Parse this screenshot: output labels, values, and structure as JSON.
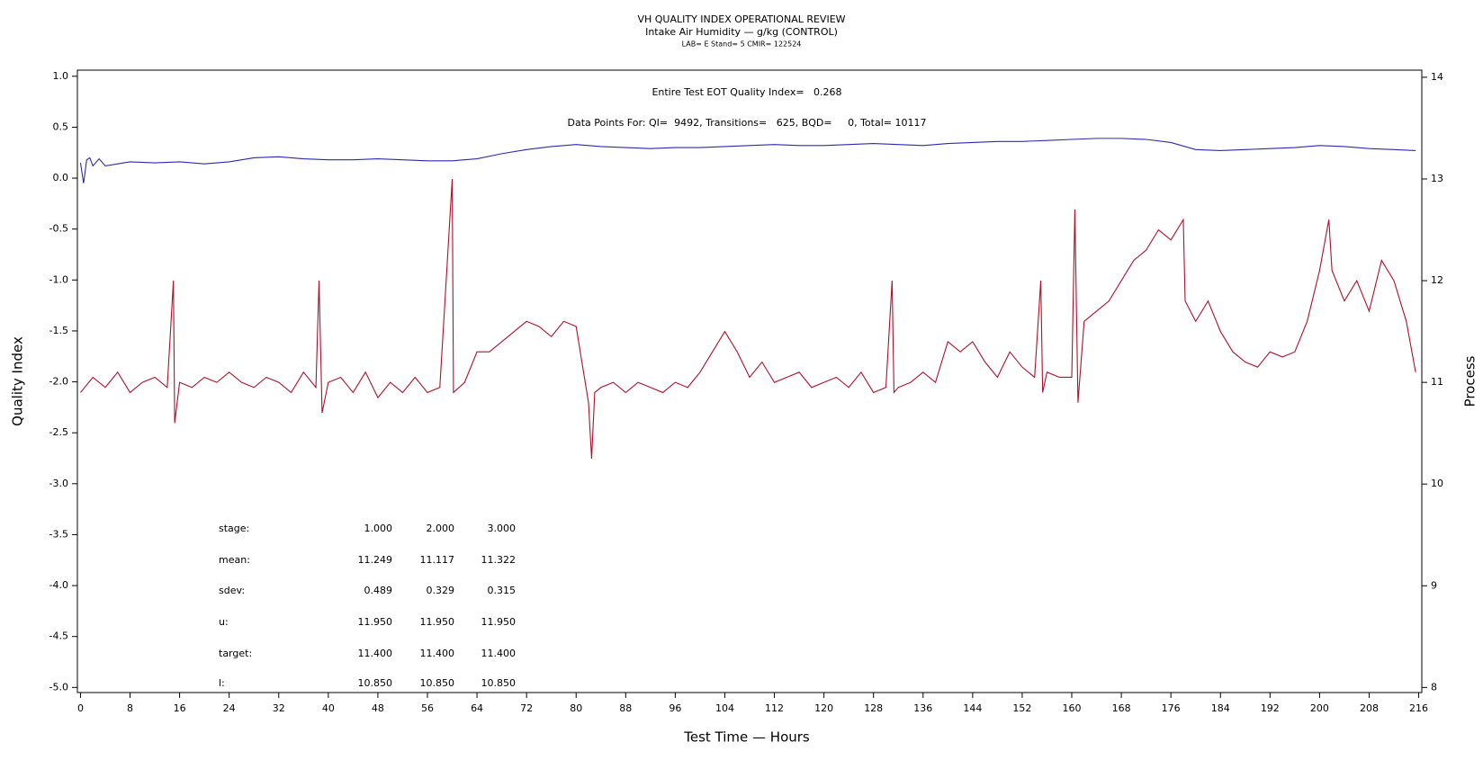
{
  "chart_data": {
    "type": "line",
    "title": "VH QUALITY INDEX OPERATIONAL REVIEW",
    "subtitle": "Intake Air Humidity — g/kg (CONTROL)",
    "subtitle2": "LAB= E Stand= 5 CMIR= 122524",
    "xlabel": "Test Time — Hours",
    "ylabel": "Quality Index",
    "y2label": "Process",
    "annotations": [
      "Entire Test EOT Quality Index=   0.268",
      "Data Points For: QI=  9492, Transitions=   625, BQD=     0, Total= 10117"
    ],
    "stats": [
      [
        "stage:",
        "1.000",
        "2.000",
        "3.000"
      ],
      [
        "mean:",
        "11.249",
        "11.117",
        "11.322"
      ],
      [
        "sdev:",
        "0.489",
        "0.329",
        "0.315"
      ],
      [
        "u:",
        "11.950",
        "11.950",
        "11.950"
      ],
      [
        "target:",
        "11.400",
        "11.400",
        "11.400"
      ],
      [
        "l:",
        "10.850",
        "10.850",
        "10.850"
      ]
    ],
    "xlim": [
      -0.5,
      216.5
    ],
    "xticks": [
      0,
      8,
      16,
      24,
      32,
      40,
      48,
      56,
      64,
      72,
      80,
      88,
      96,
      104,
      112,
      120,
      128,
      136,
      144,
      152,
      160,
      168,
      176,
      184,
      192,
      200,
      208,
      216
    ],
    "ylim": [
      -5.05,
      1.06
    ],
    "yticks": [
      {
        "value": 1,
        "label": "1.0"
      },
      0.5,
      {
        "value": 0,
        "label": "0.0"
      },
      -0.5,
      {
        "value": -1,
        "label": "-1.0"
      },
      -1.5,
      {
        "value": -2,
        "label": "-2.0"
      },
      -2.5,
      {
        "value": -3,
        "label": "-3.0"
      },
      -3.5,
      {
        "value": -4,
        "label": "-4.0"
      },
      -4.5,
      {
        "value": -5,
        "label": "-5.0"
      }
    ],
    "y2lim": [
      7.95,
      14.07
    ],
    "y2ticks": [
      8,
      9,
      10,
      11,
      12,
      13,
      14
    ],
    "series": [
      {
        "name": "Quality Index",
        "color": "#2a2ab0",
        "axis": "y",
        "x": [
          0,
          0.5,
          1,
          1.5,
          2,
          3,
          4,
          6,
          8,
          12,
          16,
          20,
          24,
          28,
          32,
          36,
          40,
          44,
          48,
          52,
          56,
          60,
          64,
          68,
          72,
          76,
          80,
          84,
          88,
          92,
          96,
          100,
          104,
          108,
          112,
          116,
          120,
          124,
          128,
          132,
          136,
          140,
          144,
          148,
          152,
          156,
          160,
          164,
          168,
          172,
          176,
          180,
          184,
          188,
          192,
          196,
          200,
          204,
          208,
          212,
          215.5
        ],
        "values": [
          0.15,
          -0.05,
          0.18,
          0.2,
          0.12,
          0.19,
          0.12,
          0.14,
          0.16,
          0.15,
          0.16,
          0.14,
          0.16,
          0.2,
          0.21,
          0.19,
          0.18,
          0.18,
          0.19,
          0.18,
          0.17,
          0.17,
          0.19,
          0.24,
          0.28,
          0.31,
          0.33,
          0.31,
          0.3,
          0.29,
          0.3,
          0.3,
          0.31,
          0.32,
          0.33,
          0.32,
          0.32,
          0.33,
          0.34,
          0.33,
          0.32,
          0.34,
          0.35,
          0.36,
          0.36,
          0.37,
          0.38,
          0.39,
          0.39,
          0.38,
          0.35,
          0.28,
          0.27,
          0.28,
          0.29,
          0.3,
          0.32,
          0.31,
          0.29,
          0.28,
          0.27
        ]
      },
      {
        "name": "Process",
        "color": "#b0102a",
        "axis": "y2",
        "x": [
          0,
          2,
          4,
          6,
          8,
          10,
          12,
          14,
          15,
          15.2,
          16,
          18,
          20,
          22,
          24,
          26,
          28,
          30,
          32,
          34,
          36,
          38,
          38.5,
          39,
          40,
          42,
          44,
          46,
          48,
          50,
          52,
          54,
          56,
          58,
          60,
          60.2,
          62,
          64,
          66,
          68,
          70,
          72,
          74,
          76,
          78,
          80,
          82,
          82.5,
          83,
          84,
          86,
          88,
          90,
          92,
          94,
          96,
          98,
          100,
          102,
          104,
          106,
          108,
          110,
          112,
          114,
          116,
          118,
          120,
          122,
          124,
          126,
          128,
          130,
          131,
          131.3,
          132,
          134,
          136,
          138,
          140,
          142,
          144,
          146,
          148,
          150,
          152,
          154,
          155,
          155.3,
          156,
          158,
          160,
          160.5,
          161,
          162,
          164,
          166,
          168,
          170,
          172,
          174,
          176,
          178,
          178.3,
          180,
          182,
          184,
          186,
          188,
          190,
          192,
          194,
          196,
          198,
          200,
          201.5,
          202,
          204,
          206,
          208,
          210,
          212,
          214,
          215.5
        ],
        "values": [
          10.9,
          11.05,
          10.95,
          11.1,
          10.9,
          11.0,
          11.05,
          10.95,
          12.0,
          10.6,
          11.0,
          10.95,
          11.05,
          11.0,
          11.1,
          11.0,
          10.95,
          11.05,
          11.0,
          10.9,
          11.1,
          10.95,
          12.0,
          10.7,
          11.0,
          11.05,
          10.9,
          11.1,
          10.85,
          11.0,
          10.9,
          11.05,
          10.9,
          10.95,
          13.0,
          10.9,
          11.0,
          11.3,
          11.3,
          11.4,
          11.5,
          11.6,
          11.55,
          11.45,
          11.6,
          11.55,
          10.8,
          10.25,
          10.9,
          10.95,
          11.0,
          10.9,
          11.0,
          10.95,
          10.9,
          11.0,
          10.95,
          11.1,
          11.3,
          11.5,
          11.3,
          11.05,
          11.2,
          11.0,
          11.05,
          11.1,
          10.95,
          11.0,
          11.05,
          10.95,
          11.1,
          10.9,
          10.95,
          12.0,
          10.9,
          10.95,
          11.0,
          11.1,
          11.0,
          11.4,
          11.3,
          11.4,
          11.2,
          11.05,
          11.3,
          11.15,
          11.05,
          12.0,
          10.9,
          11.1,
          11.05,
          11.05,
          12.7,
          10.8,
          11.6,
          11.7,
          11.8,
          12.0,
          12.2,
          12.3,
          12.5,
          12.4,
          12.6,
          11.8,
          11.6,
          11.8,
          11.5,
          11.3,
          11.2,
          11.15,
          11.3,
          11.25,
          11.3,
          11.6,
          12.1,
          12.6,
          12.1,
          11.8,
          12.0,
          11.7,
          12.2,
          12.0,
          11.6,
          11.1
        ]
      }
    ]
  }
}
